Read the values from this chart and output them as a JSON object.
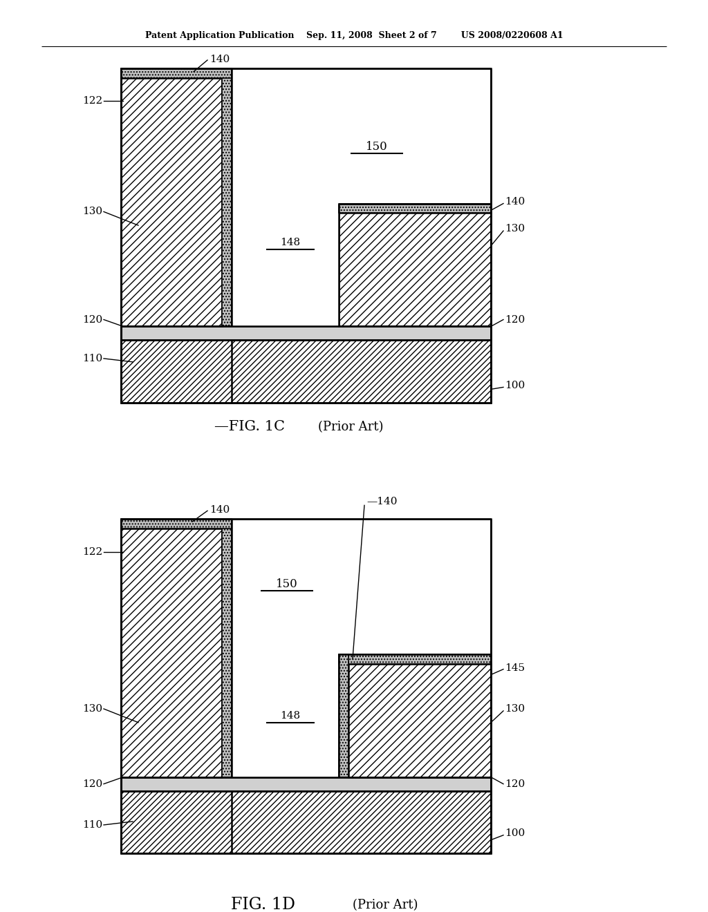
{
  "bg_color": "#ffffff",
  "fig1c_title": "FIG. 1C",
  "fig1d_title": "FIG. 1D",
  "prior_art": "(Prior Art)",
  "header": "Patent Application Publication    Sep. 11, 2008  Sheet 2 of 7        US 2008/0220608 A1",
  "hatch_sparse": "///",
  "hatch_dense": "////",
  "hatch_dot": "....",
  "lw_main": 1.8,
  "lw_thin": 1.2,
  "fs_label": 11,
  "fs_caption": 15,
  "fs_caption_sub": 13,
  "fs_header": 9
}
